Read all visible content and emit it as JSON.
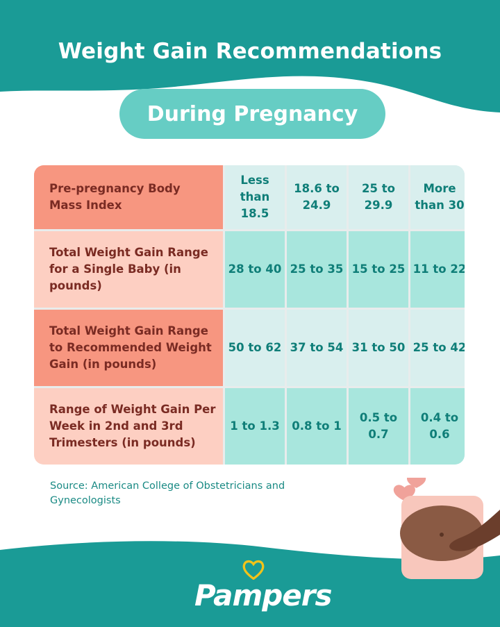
{
  "header": {
    "title": "Weight Gain Recommendations",
    "subtitle": "During Pregnancy"
  },
  "table": {
    "rows": [
      {
        "label": "Pre-pregnancy Body Mass Index",
        "values": [
          "Less than 18.5",
          "18.6 to 24.9",
          "25 to 29.9",
          "More than 30"
        ]
      },
      {
        "label": "Total Weight Gain Range for a Single Baby (in pounds)",
        "values": [
          "28 to 40",
          "25 to 35",
          "15 to 25",
          "11 to 22"
        ]
      },
      {
        "label": "Total Weight Gain Range to Recommended Weight Gain (in pounds)",
        "values": [
          "50 to 62",
          "37 to 54",
          "31 to 50",
          "25 to 42"
        ]
      },
      {
        "label": "Range of Weight Gain Per Week in 2nd and 3rd Trimesters (in pounds)",
        "values": [
          "1 to 1.3",
          "0.8 to 1",
          "0.5 to 0.7",
          "0.4 to 0.6"
        ]
      }
    ]
  },
  "source": "Source: American College of Obstetricians and Gynecologists",
  "brand": {
    "logo_text": "Pampers"
  },
  "colors": {
    "teal": "#1a9b96",
    "pill": "#66cdc4",
    "label_dark": "#f79680",
    "label_light": "#fdcfc2",
    "label_text": "#7a2b23",
    "value_text": "#0f7e78"
  }
}
